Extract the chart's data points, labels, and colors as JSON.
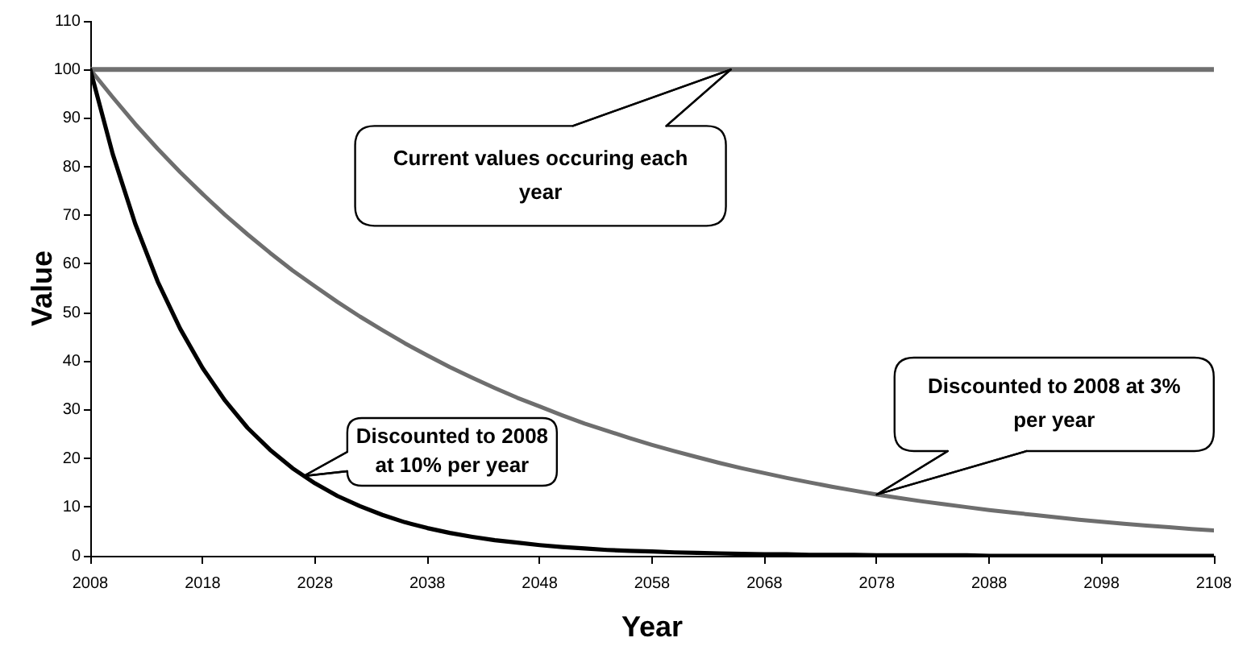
{
  "chart_data": {
    "type": "line",
    "xlabel": "Year",
    "ylabel": "Value",
    "xlim": [
      2008,
      2108
    ],
    "xticks": [
      2008,
      2018,
      2028,
      2038,
      2048,
      2058,
      2068,
      2078,
      2088,
      2098,
      2108
    ],
    "ylim": [
      0,
      110
    ],
    "yticks": [
      0,
      10,
      20,
      30,
      40,
      50,
      60,
      70,
      80,
      90,
      100,
      110
    ],
    "line_style": "solid",
    "x": [
      2008,
      2010,
      2012,
      2014,
      2016,
      2018,
      2020,
      2022,
      2024,
      2026,
      2028,
      2030,
      2032,
      2034,
      2036,
      2038,
      2040,
      2042,
      2044,
      2046,
      2048,
      2050,
      2052,
      2054,
      2056,
      2058,
      2060,
      2062,
      2064,
      2066,
      2068,
      2070,
      2072,
      2074,
      2076,
      2078,
      2080,
      2082,
      2084,
      2086,
      2088,
      2090,
      2092,
      2094,
      2096,
      2098,
      2100,
      2102,
      2104,
      2106,
      2108
    ],
    "series": [
      {
        "color": "#707070",
        "x": [
          2008,
          2108
        ],
        "values": [
          100,
          100
        ]
      },
      {
        "color": "#6e6e6e",
        "values": [
          100,
          94.3,
          88.8,
          83.7,
          78.9,
          74.4,
          70.1,
          66.1,
          62.3,
          58.7,
          55.4,
          52.2,
          49.2,
          46.4,
          43.7,
          41.2,
          38.8,
          36.6,
          34.5,
          32.5,
          30.7,
          28.9,
          27.2,
          25.7,
          24.2,
          22.8,
          21.5,
          20.3,
          19.1,
          18.0,
          17.0,
          16.0,
          15.1,
          14.2,
          13.4,
          12.6,
          11.9,
          11.2,
          10.6,
          10.0,
          9.4,
          8.9,
          8.4,
          7.9,
          7.4,
          7.0,
          6.6,
          6.2,
          5.9,
          5.5,
          5.2
        ]
      },
      {
        "color": "#000000",
        "values": [
          100,
          82.6,
          68.3,
          56.4,
          46.7,
          38.6,
          31.9,
          26.3,
          21.8,
          18.0,
          14.9,
          12.3,
          10.2,
          8.4,
          6.9,
          5.7,
          4.7,
          3.9,
          3.2,
          2.7,
          2.2,
          1.8,
          1.5,
          1.2,
          1.0,
          0.9,
          0.7,
          0.6,
          0.5,
          0.4,
          0.3,
          0.3,
          0.2,
          0.2,
          0.2,
          0.1,
          0.1,
          0.1,
          0.1,
          0.1,
          0,
          0,
          0,
          0,
          0,
          0,
          0,
          0,
          0,
          0,
          0
        ]
      }
    ],
    "annotations": [
      {
        "text": "Current values occuring each year",
        "x": 2065,
        "y": 100
      },
      {
        "text": "Discounted to 2008 at 10% per year",
        "x": 2027,
        "y": 16.4
      },
      {
        "text": "Discounted to 2008 at 3% per year",
        "x": 2078,
        "y": 12.6
      }
    ]
  }
}
